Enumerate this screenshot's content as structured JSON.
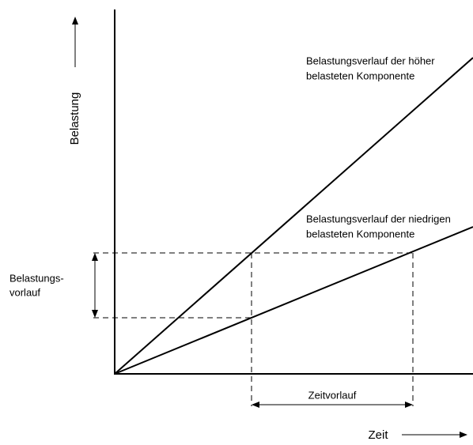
{
  "axes": {
    "y_label": "Belastung",
    "x_label": "Zeit"
  },
  "curves": [
    {
      "label_lines": [
        "Belastungsverlauf der höher",
        "belasteten Komponente"
      ]
    },
    {
      "label_lines": [
        "Belastungsverlauf der niedrigen",
        "belasteten Komponente"
      ]
    }
  ],
  "annotations": {
    "load_lead_lines": [
      "Belastungs-",
      "vorlauf"
    ],
    "time_lead": "Zeitvorlauf"
  }
}
